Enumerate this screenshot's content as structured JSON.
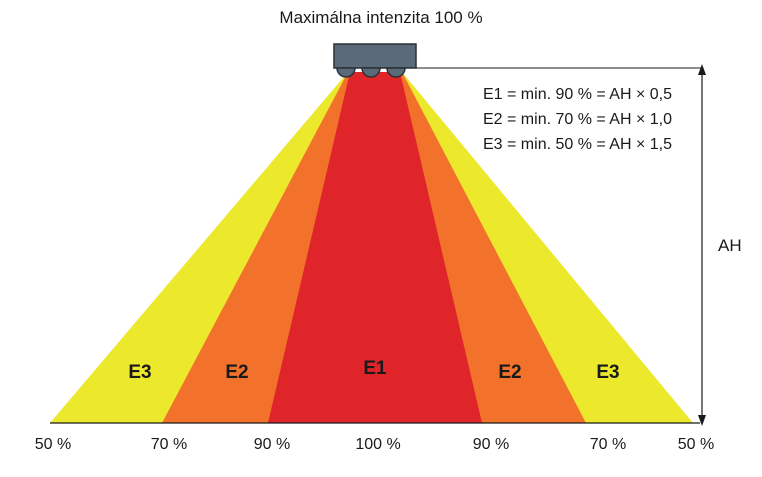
{
  "title": "Maximálna intenzita 100 %",
  "formulas": [
    "E1 = min. 90 % = AH × 0,5",
    "E2 = min. 70 % = AH × 1,0",
    "E3 = min. 50 % = AH × 1,5"
  ],
  "height_label": "AH",
  "zones": [
    {
      "label": "E3",
      "color": "#ece82c"
    },
    {
      "label": "E2",
      "color": "#f2722c"
    },
    {
      "label": "E1",
      "color": "#e0252a"
    },
    {
      "label": "E2",
      "color": "#f2722c"
    },
    {
      "label": "E3",
      "color": "#ece82c"
    }
  ],
  "bottom_labels": [
    "50 %",
    "70 %",
    "90 %",
    "100 %",
    "90 %",
    "70 %",
    "50 %"
  ],
  "colors": {
    "light_housing": "#5b6a78",
    "light_housing_edge": "#2a2f36",
    "e1": "#e0252a",
    "e2": "#f2722c",
    "e3": "#ece82c",
    "lines": "#1a1a1a"
  }
}
